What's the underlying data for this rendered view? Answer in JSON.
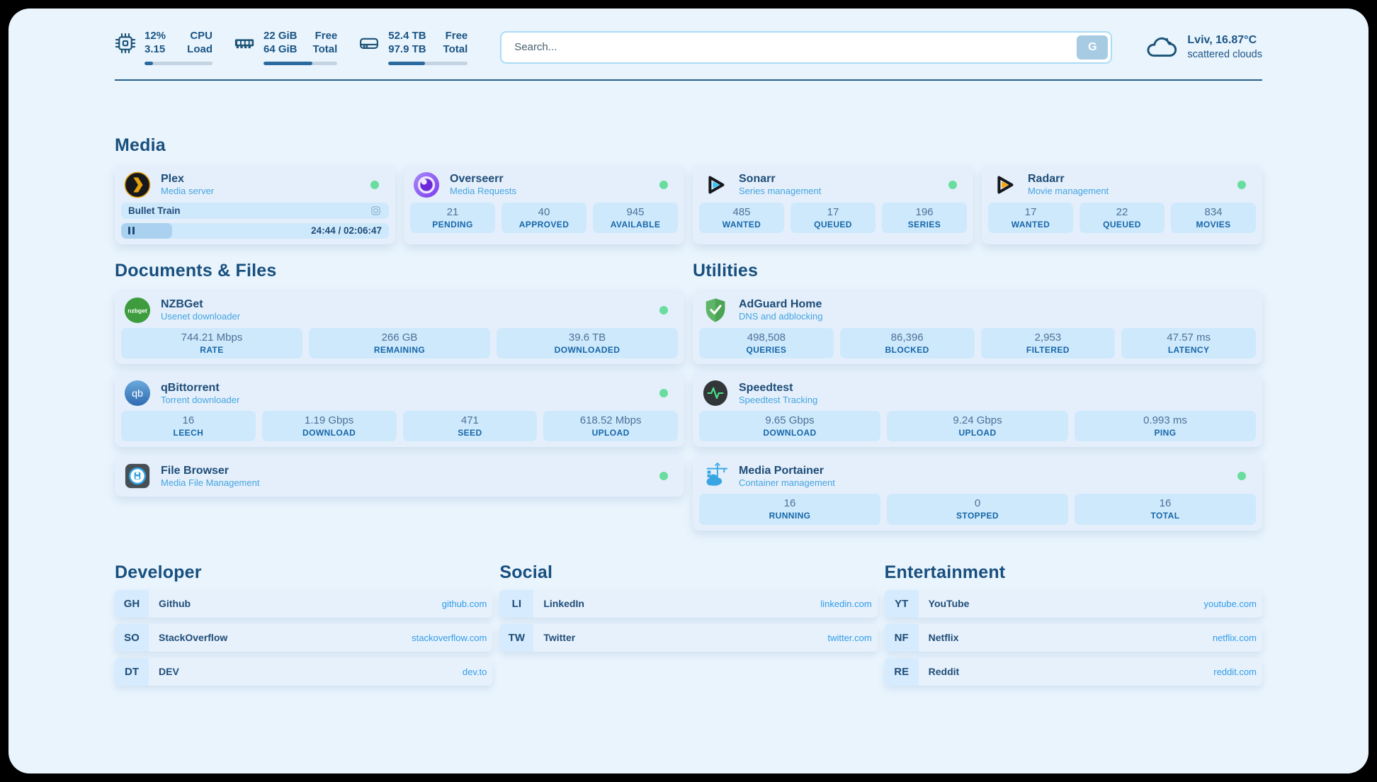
{
  "colors": {
    "page_bg": "#e9f4fd",
    "card_bg": "#e4effb",
    "tile_bg": "#cfe9fc",
    "navy_text": "#1c5585",
    "subtitle_blue": "#45a4e0",
    "url_blue": "#2f9ce8",
    "status_green": "#68dd9d",
    "bar_fill": "#2a6a9e",
    "search_button_bg": "#a7cbe3"
  },
  "topbar": {
    "stats": [
      {
        "icon": "cpu-icon",
        "values": [
          "12%",
          "3.15"
        ],
        "labels": [
          "CPU",
          "Load"
        ],
        "progress_pct": 13
      },
      {
        "icon": "memory-icon",
        "values": [
          "22 GiB",
          "64 GiB"
        ],
        "labels": [
          "Free",
          "Total"
        ],
        "progress_pct": 66
      },
      {
        "icon": "disk-icon",
        "values": [
          "52.4 TB",
          "97.9 TB"
        ],
        "labels": [
          "Free",
          "Total"
        ],
        "progress_pct": 46
      }
    ],
    "search": {
      "placeholder": "Search...",
      "button_label": "G"
    },
    "weather": {
      "icon": "cloud-icon",
      "title": "Lviv, 16.87°C",
      "subtitle": "scattered clouds"
    }
  },
  "media": {
    "heading": "Media",
    "plex": {
      "icon": "plex-icon",
      "title": "Plex",
      "subtitle": "Media server",
      "online": true,
      "now_playing": "Bullet Train",
      "time": "24:44 / 02:06:47",
      "progress_pct": 19
    },
    "cards": [
      {
        "icon": "overseerr-icon",
        "title": "Overseerr",
        "subtitle": "Media Requests",
        "online": true,
        "stats": [
          {
            "value": "21",
            "label": "PENDING"
          },
          {
            "value": "40",
            "label": "APPROVED"
          },
          {
            "value": "945",
            "label": "AVAILABLE"
          }
        ]
      },
      {
        "icon": "sonarr-icon",
        "title": "Sonarr",
        "subtitle": "Series management",
        "online": true,
        "stats": [
          {
            "value": "485",
            "label": "WANTED"
          },
          {
            "value": "17",
            "label": "QUEUED"
          },
          {
            "value": "196",
            "label": "SERIES"
          }
        ]
      },
      {
        "icon": "radarr-icon",
        "title": "Radarr",
        "subtitle": "Movie management",
        "online": true,
        "stats": [
          {
            "value": "17",
            "label": "WANTED"
          },
          {
            "value": "22",
            "label": "QUEUED"
          },
          {
            "value": "834",
            "label": "MOVIES"
          }
        ]
      }
    ]
  },
  "documents": {
    "heading": "Documents & Files",
    "cards": [
      {
        "icon": "nzbget-icon",
        "title": "NZBGet",
        "subtitle": "Usenet downloader",
        "online": true,
        "stats": [
          {
            "value": "744.21 Mbps",
            "label": "RATE"
          },
          {
            "value": "266 GB",
            "label": "REMAINING"
          },
          {
            "value": "39.6 TB",
            "label": "DOWNLOADED"
          }
        ]
      },
      {
        "icon": "qbittorrent-icon",
        "title": "qBittorrent",
        "subtitle": "Torrent downloader",
        "online": true,
        "stats": [
          {
            "value": "16",
            "label": "LEECH"
          },
          {
            "value": "1.19 Gbps",
            "label": "DOWNLOAD"
          },
          {
            "value": "471",
            "label": "SEED"
          },
          {
            "value": "618.52 Mbps",
            "label": "UPLOAD"
          }
        ]
      },
      {
        "icon": "filebrowser-icon",
        "title": "File Browser",
        "subtitle": "Media File Management",
        "online": true,
        "stats": []
      }
    ]
  },
  "utilities": {
    "heading": "Utilities",
    "cards": [
      {
        "icon": "adguard-icon",
        "title": "AdGuard Home",
        "subtitle": "DNS and adblocking",
        "online": false,
        "stats": [
          {
            "value": "498,508",
            "label": "QUERIES"
          },
          {
            "value": "86,396",
            "label": "BLOCKED"
          },
          {
            "value": "2,953",
            "label": "FILTERED"
          },
          {
            "value": "47.57 ms",
            "label": "LATENCY"
          }
        ]
      },
      {
        "icon": "speedtest-icon",
        "title": "Speedtest",
        "subtitle": "Speedtest Tracking",
        "online": false,
        "stats": [
          {
            "value": "9.65 Gbps",
            "label": "DOWNLOAD"
          },
          {
            "value": "9.24 Gbps",
            "label": "UPLOAD"
          },
          {
            "value": "0.993 ms",
            "label": "PING"
          }
        ]
      },
      {
        "icon": "portainer-icon",
        "title": "Media Portainer",
        "subtitle": "Container management",
        "online": true,
        "stats": [
          {
            "value": "16",
            "label": "RUNNING"
          },
          {
            "value": "0",
            "label": "STOPPED"
          },
          {
            "value": "16",
            "label": "TOTAL"
          }
        ]
      }
    ]
  },
  "bookmarks": [
    {
      "heading": "Developer",
      "links": [
        {
          "abbr": "GH",
          "name": "Github",
          "url": "github.com"
        },
        {
          "abbr": "SO",
          "name": "StackOverflow",
          "url": "stackoverflow.com"
        },
        {
          "abbr": "DT",
          "name": "DEV",
          "url": "dev.to"
        }
      ]
    },
    {
      "heading": "Social",
      "links": [
        {
          "abbr": "LI",
          "name": "LinkedIn",
          "url": "linkedin.com"
        },
        {
          "abbr": "TW",
          "name": "Twitter",
          "url": "twitter.com"
        }
      ]
    },
    {
      "heading": "Entertainment",
      "links": [
        {
          "abbr": "YT",
          "name": "YouTube",
          "url": "youtube.com"
        },
        {
          "abbr": "NF",
          "name": "Netflix",
          "url": "netflix.com"
        },
        {
          "abbr": "RE",
          "name": "Reddit",
          "url": "reddit.com"
        }
      ]
    }
  ]
}
